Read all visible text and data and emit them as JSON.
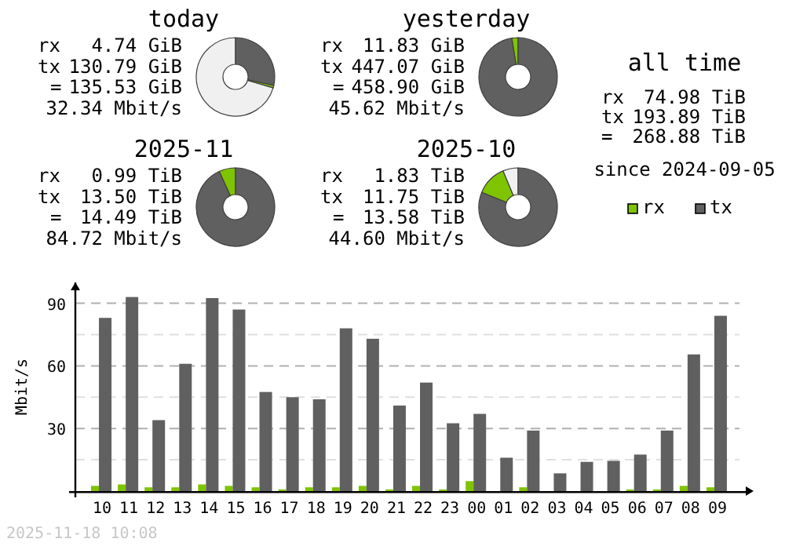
{
  "chart_data": [
    {
      "type": "donut",
      "title": "today",
      "categories": [
        null,
        null,
        null
      ],
      "values": [
        70.5,
        1.0,
        28.5
      ],
      "colors": [
        "#f0f0f0",
        "#7fc400",
        "#606060"
      ],
      "annotations": [
        "rx 4.74 GiB",
        "tx 130.79 GiB",
        "= 135.53 GiB",
        "32.34 Mbit/s"
      ]
    },
    {
      "type": "donut",
      "title": "yesterday",
      "categories": [
        null,
        null
      ],
      "values": [
        2.6,
        97.4
      ],
      "colors": [
        "#7fc400",
        "#606060"
      ],
      "annotations": [
        "rx 11.83 GiB",
        "tx 447.07 GiB",
        "= 458.90 GiB",
        "45.62 Mbit/s"
      ]
    },
    {
      "type": "donut",
      "title": "2025-11",
      "categories": [
        null,
        null
      ],
      "values": [
        6.8,
        93.2
      ],
      "colors": [
        "#7fc400",
        "#606060"
      ],
      "annotations": [
        "rx 0.99 TiB",
        "tx 13.50 TiB",
        "= 14.49 TiB",
        "84.72 Mbit/s"
      ]
    },
    {
      "type": "donut",
      "title": "2025-10",
      "categories": [
        null,
        null,
        null
      ],
      "values": [
        6.3,
        12.6,
        81.1
      ],
      "colors": [
        "#f0f0f0",
        "#7fc400",
        "#606060"
      ],
      "annotations": [
        "rx 1.83 TiB",
        "tx 11.75 TiB",
        "= 13.58 TiB",
        "44.60 Mbit/s"
      ]
    },
    {
      "type": "other",
      "title": "all time",
      "annotations": [
        "rx 74.98 TiB",
        "tx 193.89 TiB",
        "= 268.88 TiB",
        "since 2024-09-05"
      ]
    },
    {
      "type": "bar",
      "ylabel": "Mbit/s",
      "categories": [
        "10",
        "11",
        "12",
        "13",
        "14",
        "15",
        "16",
        "17",
        "18",
        "19",
        "20",
        "21",
        "22",
        "23",
        "00",
        "01",
        "02",
        "03",
        "04",
        "05",
        "06",
        "07",
        "08",
        "09"
      ],
      "series": [
        {
          "name": "rx",
          "color": "#7fc400",
          "values": [
            2.5,
            3.2,
            1.8,
            1.8,
            3.2,
            2.5,
            1.8,
            0.8,
            1.8,
            1.8,
            2.5,
            0.8,
            2.5,
            0.8,
            4.8,
            0,
            1.8,
            0,
            0,
            0,
            0.8,
            0.8,
            2.5,
            1.8
          ]
        },
        {
          "name": "tx",
          "color": "#606060",
          "values": [
            83,
            93,
            34,
            61,
            92.5,
            87,
            47.5,
            45,
            44,
            78,
            73,
            41,
            52,
            32.5,
            37,
            16,
            29,
            8.5,
            14,
            14.5,
            17.5,
            29,
            65.5,
            84
          ]
        }
      ],
      "ylim": [
        0,
        100
      ],
      "yticks": [
        {
          "value": 0,
          "label": null
        },
        {
          "value": 15,
          "label": null
        },
        30,
        {
          "value": 45,
          "label": null
        },
        60,
        {
          "value": 75,
          "label": null
        },
        90
      ],
      "grid": "y",
      "legend": "top right",
      "annotations": [
        "2025-11-18 10:08"
      ]
    }
  ]
}
